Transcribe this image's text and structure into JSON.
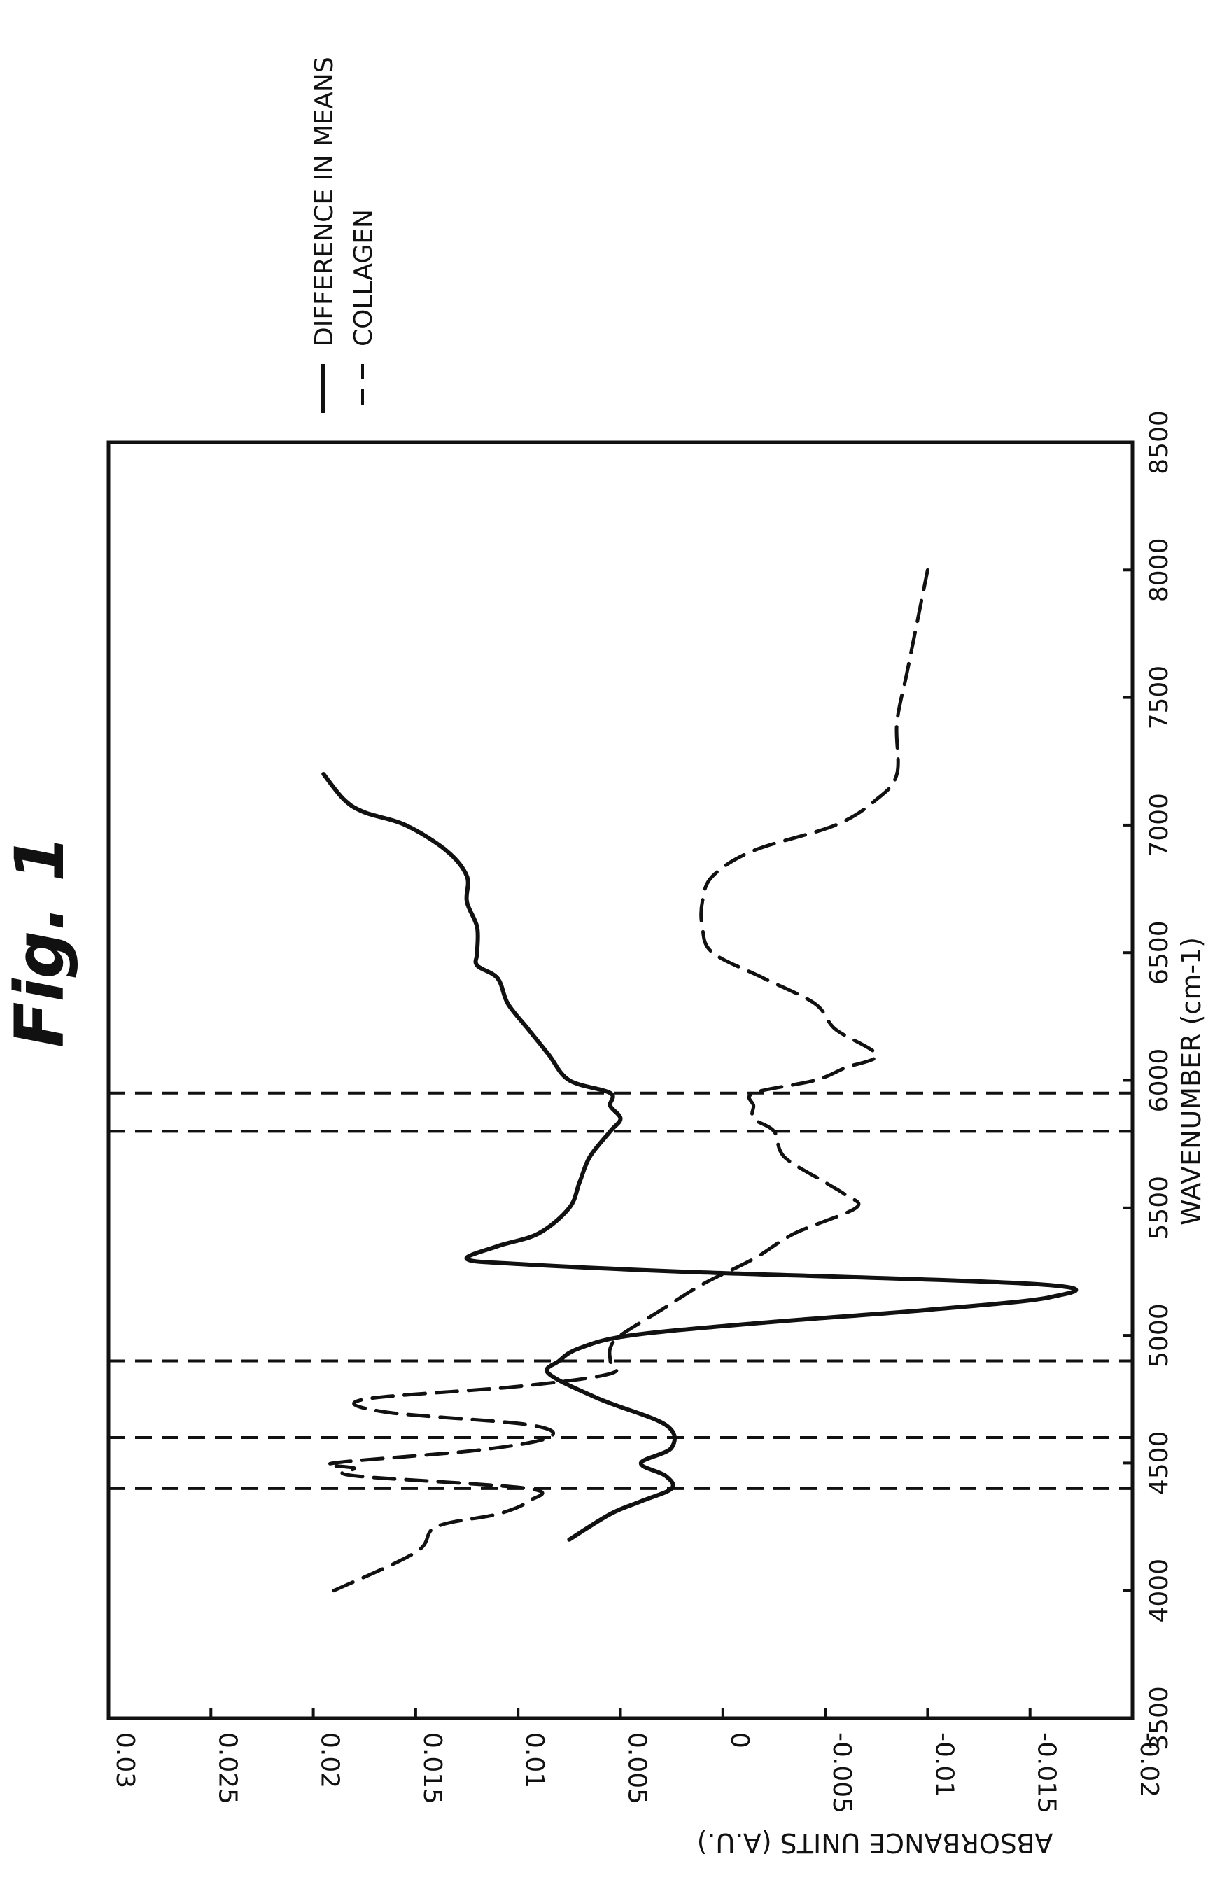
{
  "figure": {
    "title": "Fig. 1"
  },
  "chart_data": {
    "type": "line",
    "xlabel": "WAVENUMBER (cm-1)",
    "ylabel": "ABSORBANCE UNITS (A.U.)",
    "xlim": [
      3500,
      8500
    ],
    "ylim": [
      -0.02,
      0.03
    ],
    "xticks": [
      3500,
      4000,
      4500,
      5000,
      5500,
      6000,
      6500,
      7000,
      7500,
      8000,
      8500
    ],
    "yticks": [
      0.03,
      0.025,
      0.02,
      0.015,
      0.01,
      0.005,
      0,
      -0.005,
      -0.01,
      -0.015,
      -0.02
    ],
    "xtick_labels": [
      "3500",
      "4000",
      "4500",
      "5000",
      "5500",
      "6000",
      "6500",
      "7000",
      "7500",
      "8000",
      "8500"
    ],
    "ytick_labels": [
      "0.03",
      "0.025",
      "0.02",
      "0.015",
      "0.01",
      "0.005",
      "0",
      "-0.005",
      "-0.01",
      "-0.015",
      "-0.02"
    ],
    "legend_position": "top-right",
    "grid": false,
    "series": [
      {
        "name": "DIFFERENCE IN MEANS",
        "style": "solid",
        "x": [
          4200,
          4300,
          4350,
          4400,
          4450,
          4500,
          4560,
          4650,
          4750,
          4850,
          4900,
          4950,
          5000,
          5050,
          5100,
          5150,
          5200,
          5250,
          5280,
          5300,
          5350,
          5400,
          5500,
          5600,
          5700,
          5800,
          5850,
          5900,
          5950,
          6000,
          6100,
          6200,
          6300,
          6400,
          6450,
          6500,
          6600,
          6700,
          6800,
          6900,
          7000,
          7050,
          7100,
          7200
        ],
        "y": [
          0.0075,
          0.0055,
          0.004,
          0.0025,
          0.0028,
          0.004,
          0.0025,
          0.0028,
          0.006,
          0.0085,
          0.008,
          0.007,
          0.0045,
          -0.002,
          -0.01,
          -0.016,
          -0.0155,
          0.002,
          0.01,
          0.0125,
          0.011,
          0.009,
          0.0075,
          0.007,
          0.0065,
          0.0055,
          0.005,
          0.0055,
          0.0055,
          0.0075,
          0.0085,
          0.0095,
          0.0105,
          0.011,
          0.012,
          0.012,
          0.012,
          0.0125,
          0.0125,
          0.0135,
          0.0155,
          0.0175,
          0.0185,
          0.0195
        ]
      },
      {
        "name": "COLLAGEN",
        "style": "dashed",
        "x": [
          4000,
          4150,
          4250,
          4300,
          4350,
          4400,
          4450,
          4480,
          4500,
          4550,
          4600,
          4650,
          4700,
          4750,
          4800,
          4850,
          4900,
          4950,
          5000,
          5100,
          5200,
          5300,
          5400,
          5500,
          5550,
          5600,
          5700,
          5800,
          5850,
          5900,
          5950,
          6000,
          6050,
          6100,
          6200,
          6300,
          6400,
          6500,
          6600,
          6700,
          6800,
          6900,
          7000,
          7100,
          7200,
          7400,
          7600,
          7800,
          8000
        ],
        "y": [
          0.019,
          0.015,
          0.014,
          0.011,
          0.0095,
          0.0095,
          0.018,
          0.018,
          0.019,
          0.012,
          0.0085,
          0.0095,
          0.0165,
          0.0175,
          0.01,
          0.0055,
          0.0055,
          0.0055,
          0.005,
          0.003,
          0.001,
          -0.0015,
          -0.0035,
          -0.0065,
          -0.006,
          -0.005,
          -0.003,
          -0.0025,
          -0.0015,
          -0.0015,
          -0.0015,
          -0.0045,
          -0.006,
          -0.0075,
          -0.0055,
          -0.0045,
          -0.002,
          0.0005,
          0.001,
          0.001,
          0.0005,
          -0.0015,
          -0.0055,
          -0.0075,
          -0.0085,
          -0.0085,
          -0.009,
          -0.0095,
          -0.01
        ]
      }
    ],
    "vertical_reference_lines": [
      4400,
      4600,
      4900,
      5800,
      5950
    ]
  }
}
